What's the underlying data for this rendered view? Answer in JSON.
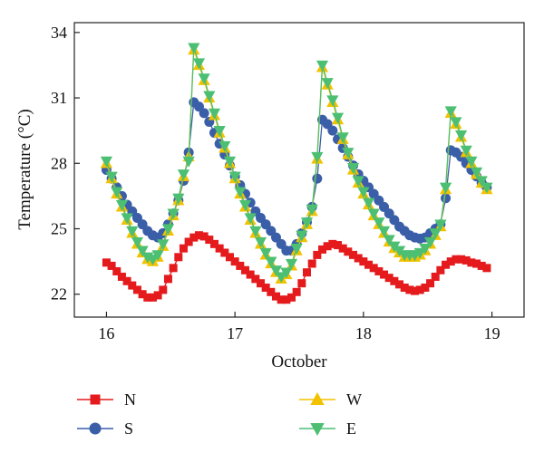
{
  "chart_data": {
    "type": "line",
    "xlabel": "October",
    "ylabel": "Temperature (°C)",
    "xlim": [
      15.75,
      19.25
    ],
    "ylim": [
      20.95,
      34.45
    ],
    "xticks": [
      16,
      17,
      18,
      19
    ],
    "xtick_labels": [
      "16",
      "17",
      "18",
      "19"
    ],
    "yticks": [
      22,
      25,
      28,
      31,
      34
    ],
    "ytick_labels": [
      "22",
      "25",
      "28",
      "31",
      "34"
    ],
    "grid": false,
    "legend_position": "bottom",
    "series": [
      {
        "name": "N",
        "color": "#e41a1c",
        "marker": "square",
        "points": [
          [
            16.0,
            23.45
          ],
          [
            16.04,
            23.3
          ],
          [
            16.08,
            23.05
          ],
          [
            16.12,
            22.8
          ],
          [
            16.16,
            22.6
          ],
          [
            16.2,
            22.4
          ],
          [
            16.24,
            22.2
          ],
          [
            16.28,
            22.0
          ],
          [
            16.32,
            21.85
          ],
          [
            16.36,
            21.85
          ],
          [
            16.4,
            21.95
          ],
          [
            16.44,
            22.2
          ],
          [
            16.48,
            22.7
          ],
          [
            16.52,
            23.2
          ],
          [
            16.56,
            23.7
          ],
          [
            16.6,
            24.1
          ],
          [
            16.64,
            24.4
          ],
          [
            16.68,
            24.6
          ],
          [
            16.72,
            24.7
          ],
          [
            16.76,
            24.65
          ],
          [
            16.8,
            24.5
          ],
          [
            16.84,
            24.3
          ],
          [
            16.88,
            24.1
          ],
          [
            16.92,
            23.9
          ],
          [
            16.96,
            23.7
          ],
          [
            17.0,
            23.5
          ],
          [
            17.04,
            23.3
          ],
          [
            17.08,
            23.1
          ],
          [
            17.12,
            22.9
          ],
          [
            17.16,
            22.7
          ],
          [
            17.2,
            22.5
          ],
          [
            17.24,
            22.3
          ],
          [
            17.28,
            22.1
          ],
          [
            17.32,
            21.9
          ],
          [
            17.36,
            21.75
          ],
          [
            17.4,
            21.75
          ],
          [
            17.44,
            21.85
          ],
          [
            17.48,
            22.1
          ],
          [
            17.52,
            22.5
          ],
          [
            17.56,
            23.0
          ],
          [
            17.6,
            23.4
          ],
          [
            17.64,
            23.8
          ],
          [
            17.68,
            24.05
          ],
          [
            17.72,
            24.2
          ],
          [
            17.76,
            24.3
          ],
          [
            17.8,
            24.25
          ],
          [
            17.84,
            24.1
          ],
          [
            17.88,
            23.95
          ],
          [
            17.92,
            23.8
          ],
          [
            17.96,
            23.65
          ],
          [
            18.0,
            23.5
          ],
          [
            18.04,
            23.35
          ],
          [
            18.08,
            23.2
          ],
          [
            18.12,
            23.05
          ],
          [
            18.16,
            22.9
          ],
          [
            18.2,
            22.75
          ],
          [
            18.24,
            22.6
          ],
          [
            18.28,
            22.45
          ],
          [
            18.32,
            22.3
          ],
          [
            18.36,
            22.2
          ],
          [
            18.4,
            22.15
          ],
          [
            18.44,
            22.2
          ],
          [
            18.48,
            22.3
          ],
          [
            18.52,
            22.5
          ],
          [
            18.56,
            22.8
          ],
          [
            18.6,
            23.1
          ],
          [
            18.64,
            23.35
          ],
          [
            18.68,
            23.5
          ],
          [
            18.72,
            23.6
          ],
          [
            18.76,
            23.6
          ],
          [
            18.8,
            23.55
          ],
          [
            18.84,
            23.45
          ],
          [
            18.88,
            23.4
          ],
          [
            18.92,
            23.3
          ],
          [
            18.96,
            23.2
          ]
        ]
      },
      {
        "name": "S",
        "color": "#3a5fa8",
        "marker": "circle",
        "points": [
          [
            16.0,
            27.7
          ],
          [
            16.04,
            27.3
          ],
          [
            16.08,
            26.9
          ],
          [
            16.12,
            26.5
          ],
          [
            16.16,
            26.1
          ],
          [
            16.2,
            25.8
          ],
          [
            16.24,
            25.5
          ],
          [
            16.28,
            25.2
          ],
          [
            16.32,
            24.9
          ],
          [
            16.36,
            24.7
          ],
          [
            16.4,
            24.6
          ],
          [
            16.44,
            24.8
          ],
          [
            16.48,
            25.2
          ],
          [
            16.52,
            25.7
          ],
          [
            16.56,
            26.3
          ],
          [
            16.6,
            27.2
          ],
          [
            16.64,
            28.5
          ],
          [
            16.68,
            30.8
          ],
          [
            16.72,
            30.6
          ],
          [
            16.76,
            30.3
          ],
          [
            16.8,
            29.9
          ],
          [
            16.84,
            29.4
          ],
          [
            16.88,
            28.9
          ],
          [
            16.92,
            28.4
          ],
          [
            16.96,
            27.9
          ],
          [
            17.0,
            27.4
          ],
          [
            17.04,
            27.0
          ],
          [
            17.08,
            26.6
          ],
          [
            17.12,
            26.2
          ],
          [
            17.16,
            25.8
          ],
          [
            17.2,
            25.5
          ],
          [
            17.24,
            25.2
          ],
          [
            17.28,
            24.9
          ],
          [
            17.32,
            24.6
          ],
          [
            17.36,
            24.3
          ],
          [
            17.4,
            24.0
          ],
          [
            17.44,
            24.0
          ],
          [
            17.48,
            24.3
          ],
          [
            17.52,
            24.8
          ],
          [
            17.56,
            25.3
          ],
          [
            17.6,
            26.0
          ],
          [
            17.64,
            27.3
          ],
          [
            17.68,
            30.0
          ],
          [
            17.72,
            29.8
          ],
          [
            17.76,
            29.5
          ],
          [
            17.8,
            29.1
          ],
          [
            17.84,
            28.7
          ],
          [
            17.88,
            28.3
          ],
          [
            17.92,
            27.9
          ],
          [
            17.96,
            27.5
          ],
          [
            18.0,
            27.2
          ],
          [
            18.04,
            26.9
          ],
          [
            18.08,
            26.6
          ],
          [
            18.12,
            26.3
          ],
          [
            18.16,
            26.0
          ],
          [
            18.2,
            25.7
          ],
          [
            18.24,
            25.4
          ],
          [
            18.28,
            25.1
          ],
          [
            18.32,
            24.9
          ],
          [
            18.36,
            24.7
          ],
          [
            18.4,
            24.6
          ],
          [
            18.44,
            24.55
          ],
          [
            18.48,
            24.6
          ],
          [
            18.52,
            24.8
          ],
          [
            18.56,
            25.0
          ],
          [
            18.6,
            25.2
          ],
          [
            18.64,
            26.4
          ],
          [
            18.68,
            28.6
          ],
          [
            18.72,
            28.5
          ],
          [
            18.76,
            28.3
          ],
          [
            18.8,
            28.0
          ],
          [
            18.84,
            27.7
          ],
          [
            18.88,
            27.4
          ],
          [
            18.92,
            27.1
          ],
          [
            18.96,
            26.9
          ]
        ]
      },
      {
        "name": "W",
        "color": "#f2c200",
        "marker": "triangle-up",
        "points": [
          [
            16.0,
            28.0
          ],
          [
            16.04,
            27.3
          ],
          [
            16.08,
            26.6
          ],
          [
            16.12,
            26.0
          ],
          [
            16.16,
            25.4
          ],
          [
            16.2,
            24.8
          ],
          [
            16.24,
            24.3
          ],
          [
            16.28,
            23.9
          ],
          [
            16.32,
            23.6
          ],
          [
            16.36,
            23.5
          ],
          [
            16.4,
            23.7
          ],
          [
            16.44,
            24.2
          ],
          [
            16.48,
            24.9
          ],
          [
            16.52,
            25.6
          ],
          [
            16.56,
            26.3
          ],
          [
            16.6,
            27.4
          ],
          [
            16.64,
            28.3
          ],
          [
            16.68,
            33.2
          ],
          [
            16.72,
            32.5
          ],
          [
            16.76,
            31.8
          ],
          [
            16.8,
            31.0
          ],
          [
            16.84,
            30.2
          ],
          [
            16.88,
            29.4
          ],
          [
            16.92,
            28.7
          ],
          [
            16.96,
            28.0
          ],
          [
            17.0,
            27.3
          ],
          [
            17.04,
            26.6
          ],
          [
            17.08,
            26.0
          ],
          [
            17.12,
            25.4
          ],
          [
            17.16,
            24.8
          ],
          [
            17.2,
            24.3
          ],
          [
            17.24,
            23.8
          ],
          [
            17.28,
            23.4
          ],
          [
            17.32,
            23.0
          ],
          [
            17.36,
            22.7
          ],
          [
            17.4,
            22.9
          ],
          [
            17.44,
            23.3
          ],
          [
            17.48,
            24.0
          ],
          [
            17.52,
            24.6
          ],
          [
            17.56,
            25.2
          ],
          [
            17.6,
            25.8
          ],
          [
            17.64,
            28.2
          ],
          [
            17.68,
            32.4
          ],
          [
            17.72,
            31.6
          ],
          [
            17.76,
            30.8
          ],
          [
            17.8,
            30.0
          ],
          [
            17.84,
            29.1
          ],
          [
            17.88,
            28.4
          ],
          [
            17.92,
            27.7
          ],
          [
            17.96,
            27.1
          ],
          [
            18.0,
            26.6
          ],
          [
            18.04,
            26.1
          ],
          [
            18.08,
            25.6
          ],
          [
            18.12,
            25.2
          ],
          [
            18.16,
            24.8
          ],
          [
            18.2,
            24.4
          ],
          [
            18.24,
            24.1
          ],
          [
            18.28,
            23.9
          ],
          [
            18.32,
            23.7
          ],
          [
            18.36,
            23.7
          ],
          [
            18.4,
            23.7
          ],
          [
            18.44,
            23.8
          ],
          [
            18.48,
            24.0
          ],
          [
            18.52,
            24.3
          ],
          [
            18.56,
            24.7
          ],
          [
            18.6,
            25.1
          ],
          [
            18.64,
            26.8
          ],
          [
            18.68,
            30.3
          ],
          [
            18.72,
            29.8
          ],
          [
            18.76,
            29.2
          ],
          [
            18.8,
            28.5
          ],
          [
            18.84,
            28.0
          ],
          [
            18.88,
            27.5
          ],
          [
            18.92,
            27.1
          ],
          [
            18.96,
            26.8
          ]
        ]
      },
      {
        "name": "E",
        "color": "#4cbf73",
        "marker": "triangle-down",
        "points": [
          [
            16.0,
            28.1
          ],
          [
            16.04,
            27.4
          ],
          [
            16.08,
            26.7
          ],
          [
            16.12,
            26.1
          ],
          [
            16.16,
            25.5
          ],
          [
            16.2,
            24.9
          ],
          [
            16.24,
            24.4
          ],
          [
            16.28,
            24.0
          ],
          [
            16.32,
            23.7
          ],
          [
            16.36,
            23.6
          ],
          [
            16.4,
            23.8
          ],
          [
            16.44,
            24.3
          ],
          [
            16.48,
            25.0
          ],
          [
            16.52,
            25.7
          ],
          [
            16.56,
            26.4
          ],
          [
            16.6,
            27.5
          ],
          [
            16.64,
            28.1
          ],
          [
            16.68,
            33.3
          ],
          [
            16.72,
            32.6
          ],
          [
            16.76,
            31.9
          ],
          [
            16.8,
            31.1
          ],
          [
            16.84,
            30.3
          ],
          [
            16.88,
            29.5
          ],
          [
            16.92,
            28.8
          ],
          [
            16.96,
            28.1
          ],
          [
            17.0,
            27.4
          ],
          [
            17.04,
            26.7
          ],
          [
            17.08,
            26.1
          ],
          [
            17.12,
            25.5
          ],
          [
            17.16,
            24.9
          ],
          [
            17.2,
            24.4
          ],
          [
            17.24,
            23.9
          ],
          [
            17.28,
            23.5
          ],
          [
            17.32,
            23.1
          ],
          [
            17.36,
            22.8
          ],
          [
            17.4,
            23.0
          ],
          [
            17.44,
            23.4
          ],
          [
            17.48,
            24.1
          ],
          [
            17.52,
            24.7
          ],
          [
            17.56,
            25.3
          ],
          [
            17.6,
            25.9
          ],
          [
            17.64,
            28.3
          ],
          [
            17.68,
            32.5
          ],
          [
            17.72,
            31.7
          ],
          [
            17.76,
            30.9
          ],
          [
            17.8,
            30.1
          ],
          [
            17.84,
            29.2
          ],
          [
            17.88,
            28.5
          ],
          [
            17.92,
            27.8
          ],
          [
            17.96,
            27.2
          ],
          [
            18.0,
            26.7
          ],
          [
            18.04,
            26.2
          ],
          [
            18.08,
            25.7
          ],
          [
            18.12,
            25.3
          ],
          [
            18.16,
            24.9
          ],
          [
            18.2,
            24.5
          ],
          [
            18.24,
            24.2
          ],
          [
            18.28,
            24.0
          ],
          [
            18.32,
            23.8
          ],
          [
            18.36,
            23.8
          ],
          [
            18.4,
            23.8
          ],
          [
            18.44,
            23.9
          ],
          [
            18.48,
            24.1
          ],
          [
            18.52,
            24.4
          ],
          [
            18.56,
            24.8
          ],
          [
            18.6,
            25.2
          ],
          [
            18.64,
            26.9
          ],
          [
            18.68,
            30.4
          ],
          [
            18.72,
            29.9
          ],
          [
            18.76,
            29.3
          ],
          [
            18.8,
            28.6
          ],
          [
            18.84,
            28.1
          ],
          [
            18.88,
            27.6
          ],
          [
            18.92,
            27.2
          ],
          [
            18.96,
            26.9
          ]
        ]
      }
    ]
  }
}
